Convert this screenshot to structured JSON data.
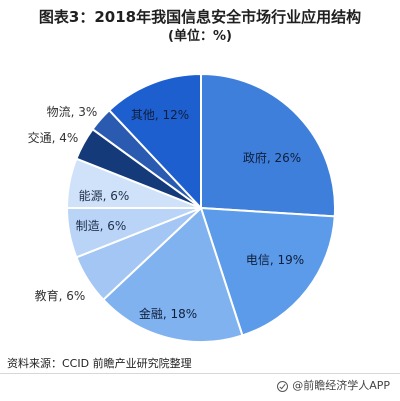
{
  "header": {
    "title": "图表3：2018年我国信息安全市场行业应用结构",
    "subtitle": "(单位：%)"
  },
  "chart_data": {
    "type": "pie",
    "title": "图表3：2018年我国信息安全市场行业应用结构",
    "subtitle": "(单位：%)",
    "slices": [
      {
        "name": "政府",
        "value": 26,
        "label": "政府, 26%",
        "color": "#3f7fdc"
      },
      {
        "name": "电信",
        "value": 19,
        "label": "电信, 19%",
        "color": "#5b9bea"
      },
      {
        "name": "金融",
        "value": 18,
        "label": "金融, 18%",
        "color": "#80b2f0"
      },
      {
        "name": "教育",
        "value": 6,
        "label": "教育, 6%",
        "color": "#a3c6f4"
      },
      {
        "name": "制造",
        "value": 6,
        "label": "制造, 6%",
        "color": "#b9d4f7"
      },
      {
        "name": "能源",
        "value": 6,
        "label": "能源, 6%",
        "color": "#cfe2fa"
      },
      {
        "name": "交通",
        "value": 4,
        "label": "交通, 4%",
        "color": "#153a7a"
      },
      {
        "name": "物流",
        "value": 3,
        "label": "物流, 3%",
        "color": "#2a5bb0"
      },
      {
        "name": "其他",
        "value": 12,
        "label": "其他, 12%",
        "color": "#1e5fcf"
      }
    ]
  },
  "footer": {
    "source": "资料来源：CCID 前瞻产业研究院整理",
    "brand": "@前瞻经济学人APP"
  }
}
